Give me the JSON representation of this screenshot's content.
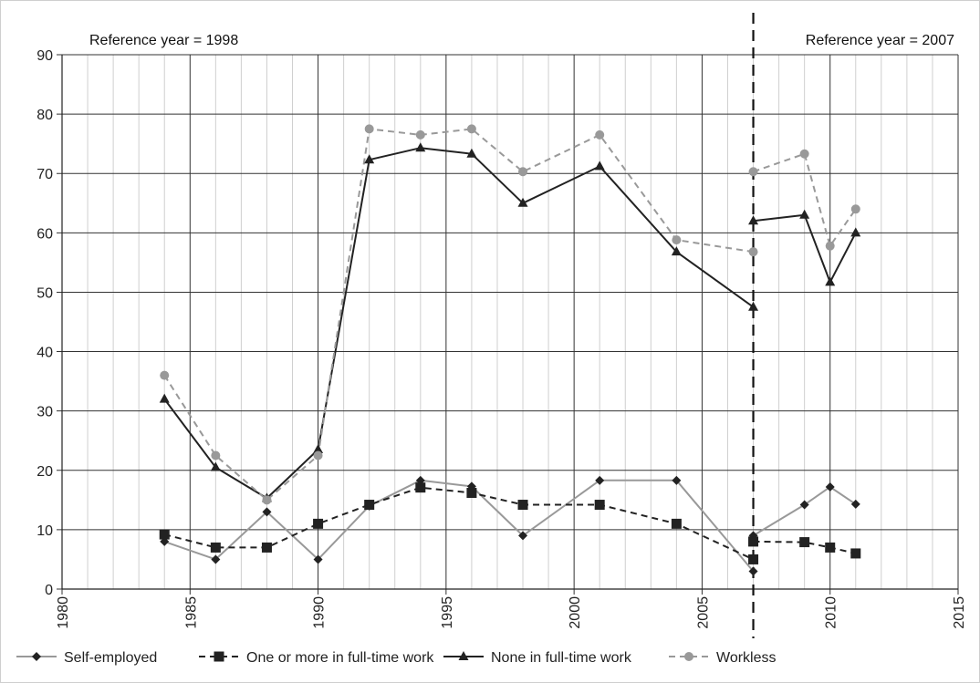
{
  "chart_data": {
    "type": "line",
    "title": "",
    "xlabel": "",
    "ylabel": "",
    "xlim": [
      1980,
      2015
    ],
    "ylim": [
      0,
      90
    ],
    "x_ticks": [
      "1980",
      "1985",
      "1990",
      "1995",
      "2000",
      "2005",
      "2010",
      "2015"
    ],
    "y_ticks": [
      "0",
      "10",
      "20",
      "30",
      "40",
      "50",
      "60",
      "70",
      "80",
      "90"
    ],
    "grid": true,
    "reference_line": {
      "x": 2007,
      "style": "dashed"
    },
    "annotations": [
      {
        "text": "Reference year = 1998",
        "position": "top-left"
      },
      {
        "text": "Reference year = 2007",
        "position": "top-right"
      }
    ],
    "legend_position": "bottom",
    "series": [
      {
        "name": "Self-employed",
        "color": "#999999",
        "line": "solid",
        "marker": "diamond",
        "marker_color": "#222222",
        "segments": [
          [
            [
              1984,
              8
            ],
            [
              1986,
              5
            ],
            [
              1988,
              13
            ],
            [
              1990,
              5
            ],
            [
              1992,
              14
            ],
            [
              1994,
              18.3
            ],
            [
              1996,
              17.3
            ],
            [
              1998,
              9
            ],
            [
              2001,
              18.3
            ],
            [
              2004,
              18.3
            ],
            [
              2007,
              3
            ]
          ],
          [
            [
              2007,
              9
            ],
            [
              2009,
              14.2
            ],
            [
              2010,
              17.2
            ],
            [
              2011,
              14.3
            ]
          ]
        ]
      },
      {
        "name": "One or more in full-time work",
        "color": "#222222",
        "line": "dashed",
        "marker": "square",
        "marker_color": "#222222",
        "segments": [
          [
            [
              1984,
              9.2
            ],
            [
              1986,
              7
            ],
            [
              1988,
              7
            ],
            [
              1990,
              11
            ],
            [
              1992,
              14.2
            ],
            [
              1994,
              17.1
            ],
            [
              1996,
              16.2
            ],
            [
              1998,
              14.2
            ],
            [
              2001,
              14.2
            ],
            [
              2004,
              11
            ],
            [
              2007,
              5
            ]
          ],
          [
            [
              2007,
              8
            ],
            [
              2009,
              7.9
            ],
            [
              2010,
              7
            ],
            [
              2011,
              6
            ]
          ]
        ]
      },
      {
        "name": "None in full-time work",
        "color": "#222222",
        "line": "solid",
        "marker": "triangle",
        "marker_color": "#222222",
        "segments": [
          [
            [
              1984,
              32
            ],
            [
              1986,
              20.5
            ],
            [
              1988,
              15.3
            ],
            [
              1990,
              23.5
            ],
            [
              1992,
              72.3
            ],
            [
              1994,
              74.3
            ],
            [
              1996,
              73.3
            ],
            [
              1998,
              65
            ],
            [
              2001,
              71.2
            ],
            [
              2004,
              56.8
            ],
            [
              2007,
              47.5
            ]
          ],
          [
            [
              2007,
              62
            ],
            [
              2009,
              63
            ],
            [
              2010,
              51.7
            ],
            [
              2011,
              60
            ]
          ]
        ]
      },
      {
        "name": "Workless",
        "color": "#999999",
        "line": "dashed",
        "marker": "circle",
        "marker_color": "#999999",
        "segments": [
          [
            [
              1984,
              36
            ],
            [
              1986,
              22.5
            ],
            [
              1988,
              15
            ],
            [
              1990,
              22.5
            ],
            [
              1992,
              77.5
            ],
            [
              1994,
              76.5
            ],
            [
              1996,
              77.5
            ],
            [
              1998,
              70.3
            ],
            [
              2001,
              76.5
            ],
            [
              2004,
              58.8
            ],
            [
              2007,
              56.8
            ]
          ],
          [
            [
              2007,
              70.3
            ],
            [
              2009,
              73.3
            ],
            [
              2010,
              57.8
            ],
            [
              2011,
              64
            ]
          ]
        ]
      }
    ]
  }
}
